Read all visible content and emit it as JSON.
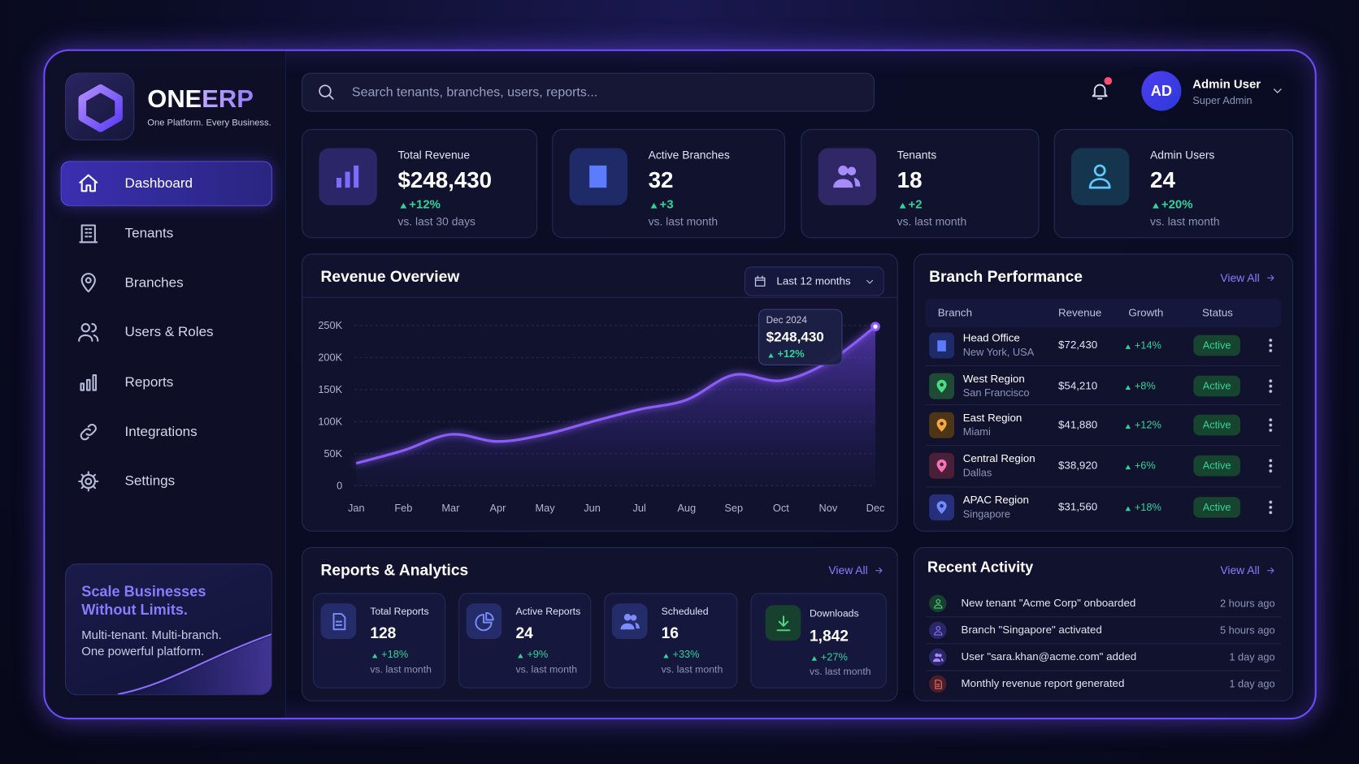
{
  "brand": {
    "name": "ONEERP",
    "tagline": "One Platform. Every Business."
  },
  "nav": [
    "Dashboard",
    "Tenants",
    "Branches",
    "Users & Roles",
    "Reports",
    "Integrations",
    "Settings"
  ],
  "promo": {
    "title": "Scale Businesses Without Limits.",
    "text": "Multi-tenant. Multi-branch. One powerful platform."
  },
  "search_placeholder": "Search tenants, branches, users, reports...",
  "user": {
    "initials": "AD",
    "name": "Admin User",
    "role": "Super Admin"
  },
  "kpis": [
    {
      "label": "Total Revenue",
      "value": "$248,430",
      "change": "+12%",
      "period": "vs. last 30 days"
    },
    {
      "label": "Active Branches",
      "value": 32,
      "change": "+3",
      "period": "vs. last month"
    },
    {
      "label": "Tenants",
      "value": 18,
      "change": "+2",
      "period": "vs. last month"
    },
    {
      "label": "Admin Users",
      "value": 24,
      "change": "+20%",
      "period": "vs. last month"
    }
  ],
  "revenue_overview": {
    "title": "Revenue Overview",
    "range": "Last 12 months",
    "tooltip": {
      "date": "Dec 2024",
      "value": "$248,430",
      "change": "+12%"
    },
    "chart": {
      "type": "line",
      "categories": [
        "Jan",
        "Feb",
        "Mar",
        "Apr",
        "May",
        "Jun",
        "Jul",
        "Aug",
        "Sep",
        "Oct",
        "Nov",
        "Dec"
      ],
      "values": [
        35000,
        55000,
        80000,
        69000,
        80000,
        100000,
        119000,
        134000,
        173000,
        164000,
        193000,
        248430
      ],
      "color": "#8b5cf6",
      "ylim": [
        0,
        250000
      ],
      "yticks": [
        0,
        {
          "value": 50000,
          "label": "50K"
        },
        {
          "value": 100000,
          "label": "100K"
        },
        {
          "value": 150000,
          "label": "150K"
        },
        {
          "value": 200000,
          "label": "200K"
        },
        {
          "value": 250000,
          "label": "250K"
        }
      ],
      "grid": true
    }
  },
  "branch_performance": {
    "title": "Branch Performance",
    "view_all": "View All",
    "columns": [
      "Branch",
      "Revenue",
      "Growth",
      "Status"
    ],
    "rows": [
      {
        "name": "Head Office",
        "location": "New York, USA",
        "revenue": "$72,430",
        "growth": "+14%",
        "status": "Active"
      },
      {
        "name": "West Region",
        "location": "San Francisco",
        "revenue": "$54,210",
        "growth": "+8%",
        "status": "Active"
      },
      {
        "name": "East Region",
        "location": "Miami",
        "revenue": "$41,880",
        "growth": "+12%",
        "status": "Active"
      },
      {
        "name": "Central Region",
        "location": "Dallas",
        "revenue": "$38,920",
        "growth": "+6%",
        "status": "Active"
      },
      {
        "name": "APAC Region",
        "location": "Singapore",
        "revenue": "$31,560",
        "growth": "+18%",
        "status": "Active"
      }
    ]
  },
  "reports": {
    "title": "Reports & Analytics",
    "view_all": "View All",
    "cards": [
      {
        "label": "Total Reports",
        "value": 128,
        "change": "+18%",
        "period": "vs. last month"
      },
      {
        "label": "Active Reports",
        "value": 24,
        "change": "+9%",
        "period": "vs. last month"
      },
      {
        "label": "Scheduled",
        "value": 16,
        "change": "+33%",
        "period": "vs. last month"
      },
      {
        "label": "Downloads",
        "value": "1,842",
        "change": "+27%",
        "period": "vs. last month"
      }
    ]
  },
  "activity": {
    "title": "Recent Activity",
    "view_all": "View All",
    "items": [
      {
        "text": "New tenant \"Acme Corp\" onboarded",
        "time": "2 hours ago"
      },
      {
        "text": "Branch \"Singapore\" activated",
        "time": "5 hours ago"
      },
      {
        "text": "User \"sara.khan@acme.com\" added",
        "time": "1 day ago"
      },
      {
        "text": "Monthly revenue report generated",
        "time": "1 day ago"
      }
    ]
  }
}
